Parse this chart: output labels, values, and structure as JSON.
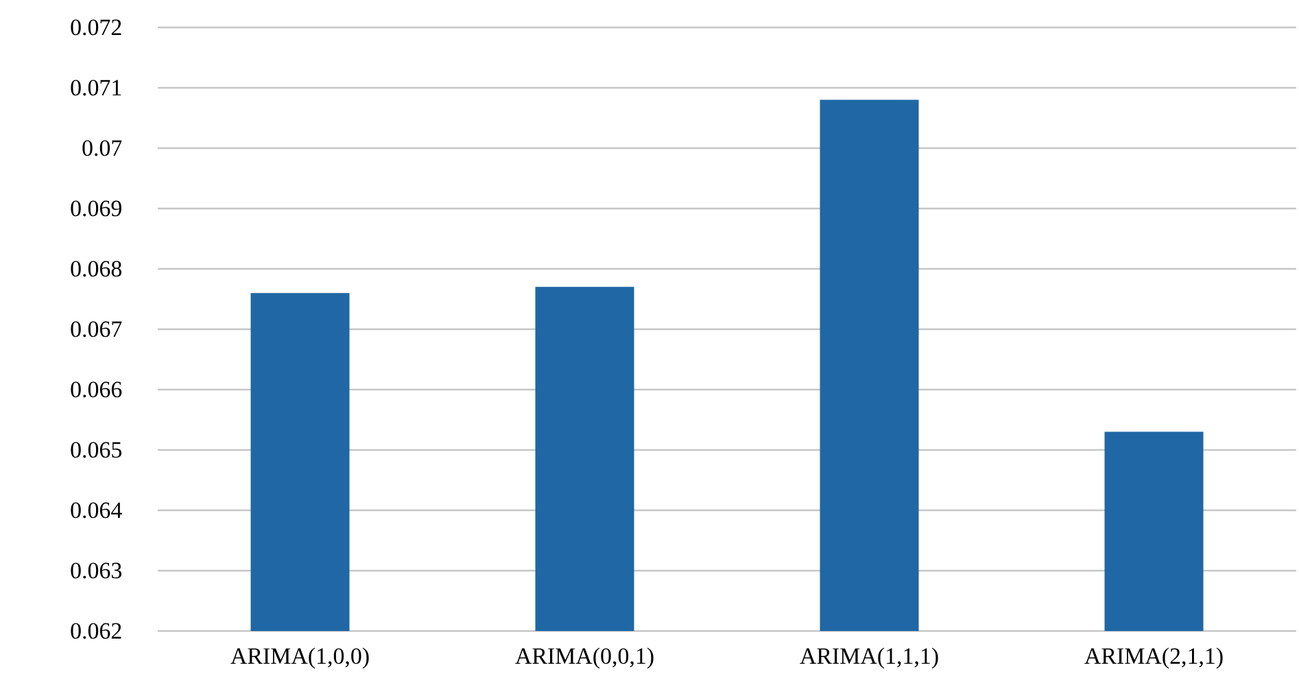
{
  "chart_data": {
    "type": "bar",
    "categories": [
      "ARIMA(1,0,0)",
      "ARIMA(0,0,1)",
      "ARIMA(1,1,1)",
      "ARIMA(2,1,1)"
    ],
    "values": [
      0.0676,
      0.0677,
      0.0708,
      0.0653
    ],
    "color": "#1f67a5",
    "ylim": [
      0.062,
      0.072
    ],
    "yticks": [
      0.062,
      0.063,
      0.064,
      0.065,
      0.066,
      0.067,
      0.068,
      0.069,
      0.07,
      0.071,
      0.072
    ],
    "grid": "y"
  }
}
